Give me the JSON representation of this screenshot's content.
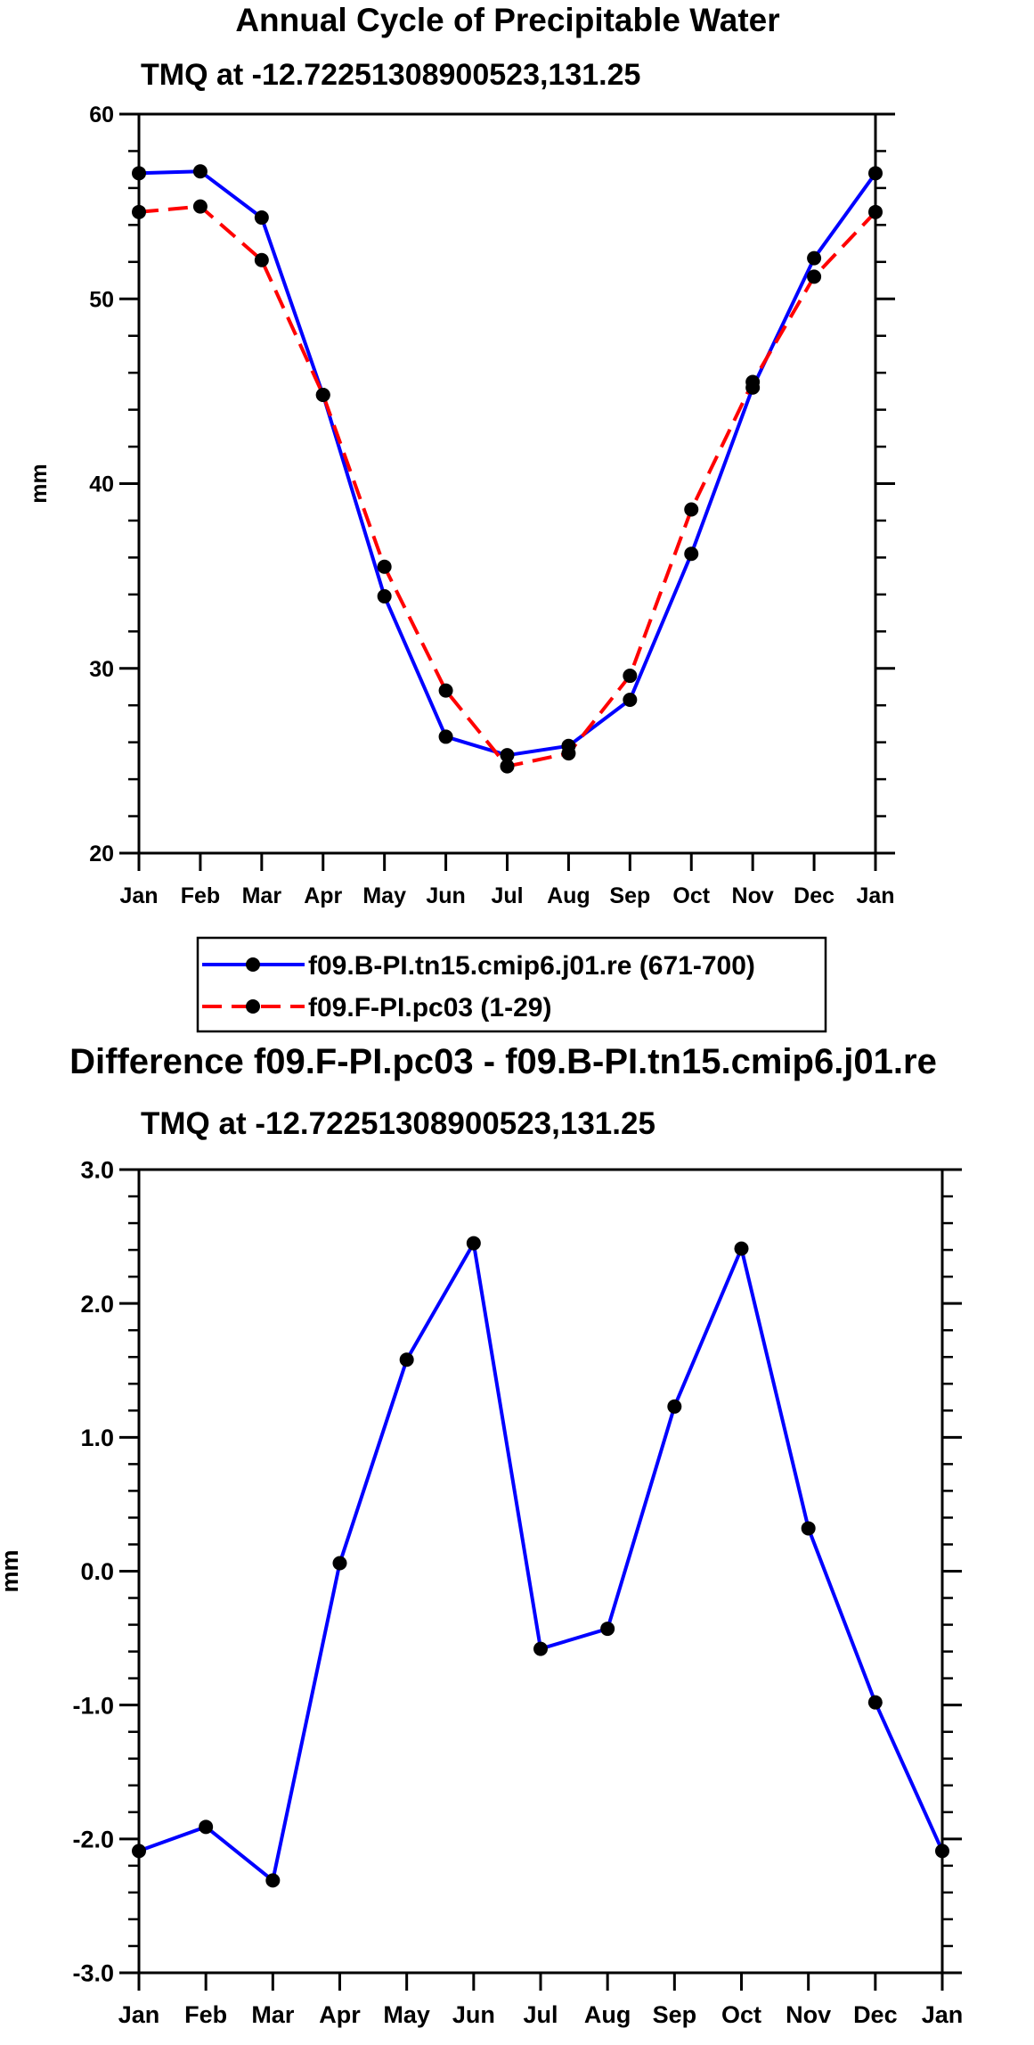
{
  "colors": {
    "series_a": "#0000ff",
    "series_b": "#ff0000",
    "marker": "#000000",
    "axis": "#000000"
  },
  "chart_data": [
    {
      "type": "line",
      "title": "Annual Cycle of Precipitable Water",
      "subtitle": "TMQ at -12.72251308900523,131.25",
      "ylabel": "mm",
      "xlabel": "",
      "ylim": [
        20,
        60
      ],
      "yticks": [
        20,
        30,
        40,
        50,
        60
      ],
      "ytick_labels": [
        "20",
        "30",
        "40",
        "50",
        "60"
      ],
      "y_minor_step": 2,
      "categories": [
        "Jan",
        "Feb",
        "Mar",
        "Apr",
        "May",
        "Jun",
        "Jul",
        "Aug",
        "Sep",
        "Oct",
        "Nov",
        "Dec",
        "Jan"
      ],
      "series": [
        {
          "name": "f09.B-PI.tn15.cmip6.j01.re (671-700)",
          "color": "#0000ff",
          "dash": "solid",
          "values": [
            56.8,
            56.9,
            54.4,
            44.8,
            33.9,
            26.3,
            25.3,
            25.8,
            28.3,
            36.2,
            45.2,
            52.2,
            56.8
          ]
        },
        {
          "name": "f09.F-PI.pc03 (1-29)",
          "color": "#ff0000",
          "dash": "dashed",
          "values": [
            54.7,
            55.0,
            52.1,
            44.8,
            35.5,
            28.8,
            24.7,
            25.4,
            29.6,
            38.6,
            45.5,
            51.2,
            54.7
          ]
        }
      ],
      "grid": false,
      "legend_position": "below"
    },
    {
      "type": "line",
      "title": "Difference f09.F-PI.pc03 - f09.B-PI.tn15.cmip6.j01.re",
      "subtitle": "TMQ at -12.72251308900523,131.25",
      "ylabel": "mm",
      "xlabel": "",
      "ylim": [
        -3.0,
        3.0
      ],
      "yticks": [
        -3.0,
        -2.0,
        -1.0,
        0.0,
        1.0,
        2.0,
        3.0
      ],
      "ytick_labels": [
        "-3.0",
        "-2.0",
        "-1.0",
        "0.0",
        "1.0",
        "2.0",
        "3.0"
      ],
      "y_minor_step": 0.2,
      "categories": [
        "Jan",
        "Feb",
        "Mar",
        "Apr",
        "May",
        "Jun",
        "Jul",
        "Aug",
        "Sep",
        "Oct",
        "Nov",
        "Dec",
        "Jan"
      ],
      "series": [
        {
          "name": "difference",
          "color": "#0000ff",
          "dash": "solid",
          "values": [
            -2.09,
            -1.91,
            -2.31,
            0.06,
            1.58,
            2.45,
            -0.58,
            -0.43,
            1.23,
            2.41,
            0.32,
            -0.98,
            -2.09
          ]
        }
      ],
      "grid": false,
      "legend_position": "none"
    }
  ]
}
